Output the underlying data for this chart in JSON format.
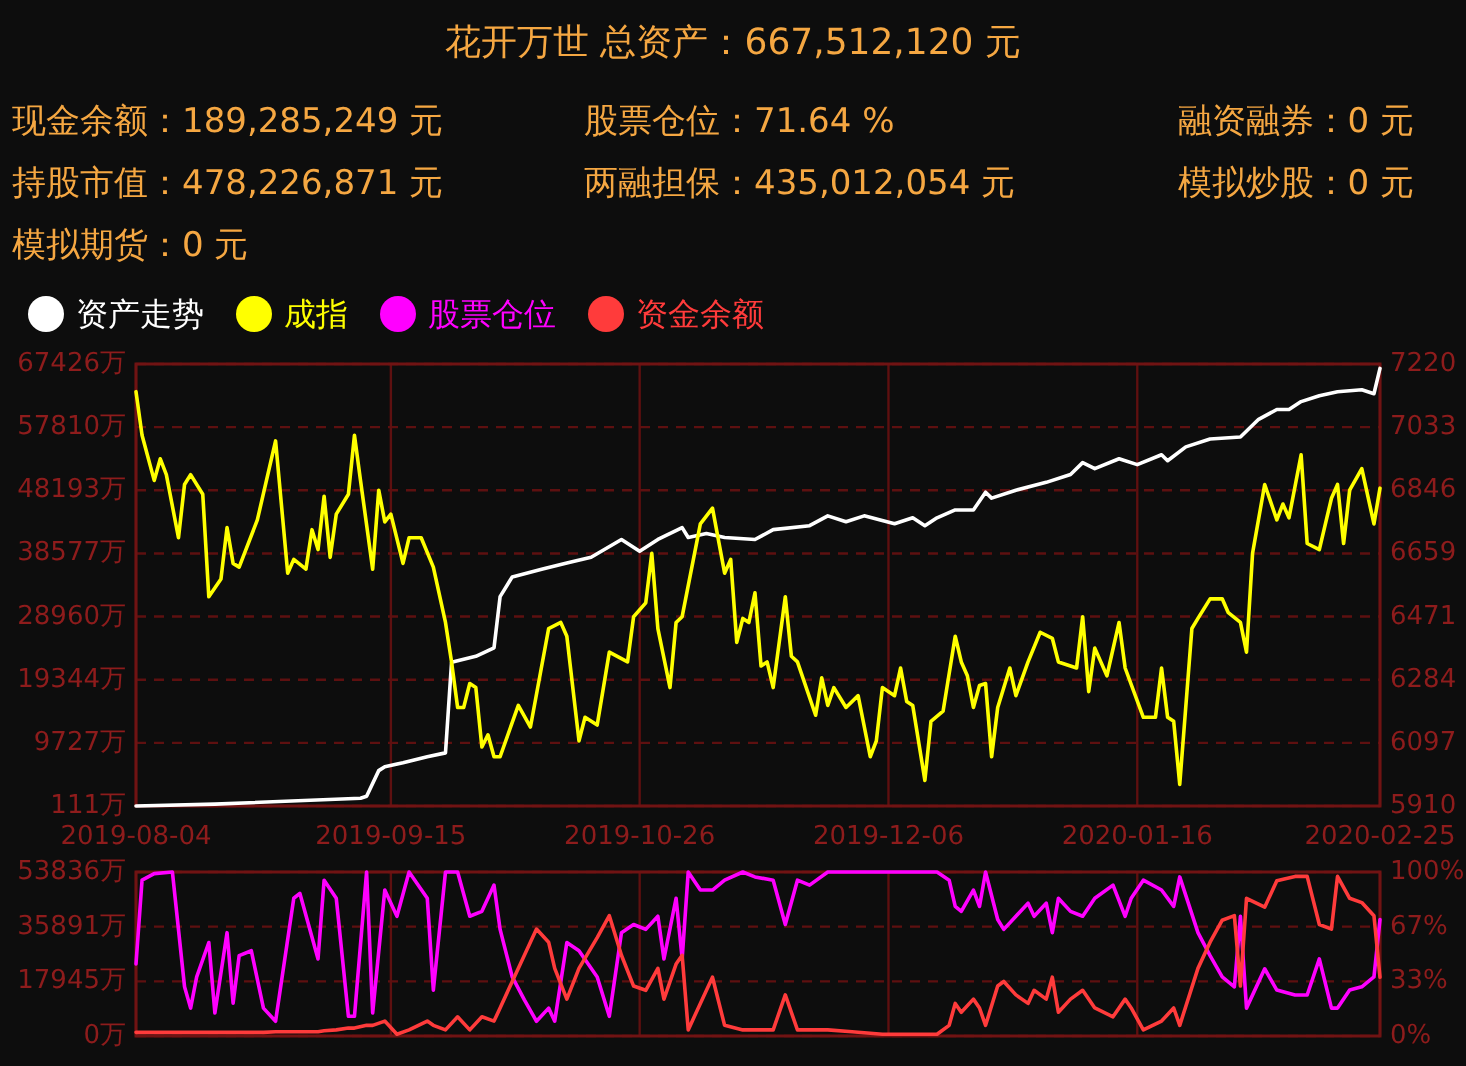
{
  "chart_data": [
    {
      "type": "other",
      "title": "花开万世 总资产：667,512,120 元",
      "annotations": [
        "现金余额：189,285,249 元",
        "股票仓位：71.64 %",
        "融资融券：0 元",
        "持股市值：478,226,871 元",
        "两融担保：435,012,054 元",
        "模拟炒股：0 元",
        "模拟期货：0 元"
      ]
    },
    {
      "type": "line",
      "xlim": [
        "2019-08-04",
        "2020-02-25"
      ],
      "xticks": [
        "2019-08-04",
        "2019-09-15",
        "2019-10-26",
        "2019-12-06",
        "2020-01-16",
        "2020-02-25"
      ],
      "ylim": [
        111,
        67426
      ],
      "yticks": [
        {
          "value": 111,
          "label": "111万"
        },
        {
          "value": 9727,
          "label": "9727万"
        },
        {
          "value": 19344,
          "label": "19344万"
        },
        {
          "value": 28960,
          "label": "28960万"
        },
        {
          "value": 38577,
          "label": "38577万"
        },
        {
          "value": 48193,
          "label": "48193万"
        },
        {
          "value": 57810,
          "label": "57810万"
        },
        {
          "value": 67426,
          "label": "67426万"
        }
      ],
      "y2lim": [
        5910,
        7220
      ],
      "y2ticks": [
        5910,
        6097,
        6284,
        6471,
        6659,
        6846,
        7033,
        7220
      ],
      "grid": true,
      "legend": "top left",
      "marker": "none",
      "line_style": "solid",
      "series": [
        {
          "name": "资产走势",
          "color": "#ffffff",
          "x": [
            "2019-08-04",
            "2019-08-17",
            "2019-09-10",
            "2019-09-11",
            "2019-09-13",
            "2019-09-14",
            "2019-09-17",
            "2019-09-21",
            "2019-09-24",
            "2019-09-25",
            "2019-09-29",
            "2019-10-02",
            "2019-10-03",
            "2019-10-05",
            "2019-10-10",
            "2019-10-14",
            "2019-10-18",
            "2019-10-23",
            "2019-10-26",
            "2019-10-29",
            "2019-11-02",
            "2019-11-03",
            "2019-11-06",
            "2019-11-09",
            "2019-11-14",
            "2019-11-17",
            "2019-11-23",
            "2019-11-26",
            "2019-11-29",
            "2019-12-02",
            "2019-12-07",
            "2019-12-10",
            "2019-12-12",
            "2019-12-14",
            "2019-12-17",
            "2019-12-20",
            "2019-12-22",
            "2019-12-23",
            "2019-12-27",
            "2020-01-01",
            "2020-01-05",
            "2020-01-07",
            "2020-01-09",
            "2020-01-13",
            "2020-01-16",
            "2020-01-20",
            "2020-01-21",
            "2020-01-24",
            "2020-01-28",
            "2020-02-02",
            "2020-02-05",
            "2020-02-08",
            "2020-02-10",
            "2020-02-12",
            "2020-02-15",
            "2020-02-18",
            "2020-02-22",
            "2020-02-24",
            "2020-02-25"
          ],
          "values": [
            111,
            400,
            1300,
            1600,
            5500,
            6100,
            6700,
            7600,
            8200,
            22000,
            22900,
            24200,
            32000,
            35000,
            36200,
            37100,
            38000,
            40700,
            38900,
            40700,
            42500,
            41000,
            41600,
            41000,
            40700,
            42200,
            42800,
            44300,
            43400,
            44300,
            43100,
            44000,
            42800,
            44000,
            45200,
            45200,
            47900,
            47000,
            48200,
            49400,
            50600,
            52400,
            51500,
            53000,
            52100,
            53600,
            52700,
            54800,
            56000,
            56300,
            59000,
            60500,
            60500,
            61700,
            62600,
            63200,
            63500,
            62900,
            66751
          ]
        },
        {
          "name": "成指",
          "color": "#ffff00",
          "axis": "y2",
          "x": [
            "2019-08-04",
            "2019-08-05",
            "2019-08-07",
            "2019-08-08",
            "2019-08-09",
            "2019-08-11",
            "2019-08-12",
            "2019-08-13",
            "2019-08-15",
            "2019-08-16",
            "2019-08-18",
            "2019-08-19",
            "2019-08-20",
            "2019-08-21",
            "2019-08-24",
            "2019-08-27",
            "2019-08-29",
            "2019-08-30",
            "2019-09-01",
            "2019-09-02",
            "2019-09-03",
            "2019-09-04",
            "2019-09-05",
            "2019-09-06",
            "2019-09-08",
            "2019-09-09",
            "2019-09-10",
            "2019-09-12",
            "2019-09-13",
            "2019-09-14",
            "2019-09-15",
            "2019-09-17",
            "2019-09-18",
            "2019-09-20",
            "2019-09-22",
            "2019-09-24",
            "2019-09-25",
            "2019-09-26",
            "2019-09-27",
            "2019-09-28",
            "2019-09-29",
            "2019-09-30",
            "2019-10-01",
            "2019-10-02",
            "2019-10-03",
            "2019-10-06",
            "2019-10-08",
            "2019-10-11",
            "2019-10-13",
            "2019-10-14",
            "2019-10-16",
            "2019-10-17",
            "2019-10-19",
            "2019-10-21",
            "2019-10-24",
            "2019-10-25",
            "2019-10-27",
            "2019-10-28",
            "2019-10-29",
            "2019-10-31",
            "2019-11-01",
            "2019-11-02",
            "2019-11-05",
            "2019-11-07",
            "2019-11-09",
            "2019-11-10",
            "2019-11-11",
            "2019-11-12",
            "2019-11-13",
            "2019-11-14",
            "2019-11-15",
            "2019-11-16",
            "2019-11-17",
            "2019-11-19",
            "2019-11-20",
            "2019-11-21",
            "2019-11-24",
            "2019-11-25",
            "2019-11-26",
            "2019-11-27",
            "2019-11-29",
            "2019-12-01",
            "2019-12-03",
            "2019-12-04",
            "2019-12-05",
            "2019-12-07",
            "2019-12-08",
            "2019-12-09",
            "2019-12-10",
            "2019-12-12",
            "2019-12-13",
            "2019-12-15",
            "2019-12-17",
            "2019-12-18",
            "2019-12-19",
            "2019-12-20",
            "2019-12-21",
            "2019-12-22",
            "2019-12-23",
            "2019-12-24",
            "2019-12-26",
            "2019-12-27",
            "2019-12-29",
            "2019-12-31",
            "2020-01-02",
            "2020-01-03",
            "2020-01-06",
            "2020-01-07",
            "2020-01-08",
            "2020-01-09",
            "2020-01-11",
            "2020-01-13",
            "2020-01-14",
            "2020-01-17",
            "2020-01-19",
            "2020-01-20",
            "2020-01-21",
            "2020-01-22",
            "2020-01-23",
            "2020-01-25",
            "2020-01-26",
            "2020-01-28",
            "2020-01-30",
            "2020-01-31",
            "2020-02-02",
            "2020-02-03",
            "2020-02-04",
            "2020-02-06",
            "2020-02-08",
            "2020-02-09",
            "2020-02-10",
            "2020-02-12",
            "2020-02-13",
            "2020-02-15",
            "2020-02-17",
            "2020-02-18",
            "2020-02-19",
            "2020-02-20",
            "2020-02-22",
            "2020-02-24",
            "2020-02-25"
          ],
          "values": [
            7138,
            7009,
            6875,
            6939,
            6892,
            6705,
            6863,
            6892,
            6834,
            6530,
            6583,
            6735,
            6629,
            6618,
            6758,
            6992,
            6600,
            6641,
            6612,
            6729,
            6670,
            6828,
            6647,
            6775,
            6834,
            7009,
            6875,
            6612,
            6846,
            6752,
            6775,
            6629,
            6705,
            6705,
            6618,
            6454,
            6337,
            6202,
            6202,
            6273,
            6261,
            6085,
            6121,
            6056,
            6056,
            6208,
            6144,
            6436,
            6454,
            6413,
            6103,
            6173,
            6150,
            6366,
            6337,
            6471,
            6512,
            6659,
            6436,
            6261,
            6454,
            6471,
            6746,
            6793,
            6600,
            6641,
            6395,
            6466,
            6454,
            6542,
            6325,
            6337,
            6261,
            6530,
            6354,
            6337,
            6179,
            6290,
            6208,
            6261,
            6202,
            6237,
            6056,
            6103,
            6261,
            6237,
            6319,
            6220,
            6208,
            5986,
            6161,
            6191,
            6413,
            6337,
            6296,
            6202,
            6267,
            6273,
            6056,
            6202,
            6319,
            6237,
            6337,
            6425,
            6407,
            6337,
            6319,
            6471,
            6249,
            6378,
            6296,
            6454,
            6319,
            6173,
            6173,
            6319,
            6173,
            6161,
            5974,
            6436,
            6466,
            6524,
            6524,
            6483,
            6454,
            6366,
            6659,
            6863,
            6758,
            6805,
            6764,
            6951,
            6688,
            6670,
            6822,
            6863,
            6688,
            6846,
            6910,
            6746,
            6852
          ]
        }
      ]
    },
    {
      "type": "line",
      "tick_labels": "y",
      "xlim": [
        "2019-08-04",
        "2020-02-25"
      ],
      "xticks": [
        {
          "value": "2019-08-04",
          "label": null
        },
        {
          "value": "2019-09-15",
          "label": null
        },
        {
          "value": "2019-10-26",
          "label": null
        },
        {
          "value": "2019-12-06",
          "label": null
        },
        {
          "value": "2020-01-16",
          "label": null
        },
        {
          "value": "2020-02-25",
          "label": null
        }
      ],
      "ylim": [
        0,
        53836
      ],
      "yticks": [
        {
          "value": 0,
          "label": "0万"
        },
        {
          "value": 17945,
          "label": "17945万"
        },
        {
          "value": 35891,
          "label": "35891万"
        },
        {
          "value": 53836,
          "label": "53836万"
        }
      ],
      "y2lim": [
        0,
        100
      ],
      "y2ticks": [
        {
          "value": 0,
          "label": "0%"
        },
        {
          "value": 33.3,
          "label": "33%"
        },
        {
          "value": 66.7,
          "label": "67%"
        },
        {
          "value": 100,
          "label": "100%"
        }
      ],
      "grid": true,
      "legend": "top left",
      "marker": "none",
      "line_style": "solid",
      "x": [
        "2019-08-04",
        "2019-08-05",
        "2019-08-07",
        "2019-08-10",
        "2019-08-12",
        "2019-08-13",
        "2019-08-14",
        "2019-08-16",
        "2019-08-17",
        "2019-08-19",
        "2019-08-20",
        "2019-08-21",
        "2019-08-23",
        "2019-08-25",
        "2019-08-27",
        "2019-08-30",
        "2019-08-31",
        "2019-09-03",
        "2019-09-04",
        "2019-09-06",
        "2019-09-08",
        "2019-09-09",
        "2019-09-11",
        "2019-09-12",
        "2019-09-14",
        "2019-09-16",
        "2019-09-18",
        "2019-09-21",
        "2019-09-22",
        "2019-09-24",
        "2019-09-26",
        "2019-09-28",
        "2019-09-30",
        "2019-10-02",
        "2019-10-03",
        "2019-10-05",
        "2019-10-07",
        "2019-10-09",
        "2019-10-11",
        "2019-10-12",
        "2019-10-14",
        "2019-10-16",
        "2019-10-19",
        "2019-10-21",
        "2019-10-23",
        "2019-10-25",
        "2019-10-27",
        "2019-10-29",
        "2019-10-30",
        "2019-11-01",
        "2019-11-02",
        "2019-11-03",
        "2019-11-05",
        "2019-11-07",
        "2019-11-09",
        "2019-11-12",
        "2019-11-14",
        "2019-11-17",
        "2019-11-19",
        "2019-11-21",
        "2019-11-23",
        "2019-11-26",
        "2019-11-30",
        "2019-12-05",
        "2019-12-09",
        "2019-12-14",
        "2019-12-16",
        "2019-12-17",
        "2019-12-18",
        "2019-12-20",
        "2019-12-21",
        "2019-12-22",
        "2019-12-24",
        "2019-12-25",
        "2019-12-27",
        "2019-12-29",
        "2019-12-30",
        "2020-01-01",
        "2020-01-02",
        "2020-01-03",
        "2020-01-05",
        "2020-01-07",
        "2020-01-09",
        "2020-01-12",
        "2020-01-14",
        "2020-01-15",
        "2020-01-17",
        "2020-01-20",
        "2020-01-22",
        "2020-01-23",
        "2020-01-26",
        "2020-01-28",
        "2020-01-30",
        "2020-02-01",
        "2020-02-02",
        "2020-02-03",
        "2020-02-06",
        "2020-02-08",
        "2020-02-11",
        "2020-02-13",
        "2020-02-15",
        "2020-02-17",
        "2020-02-18",
        "2020-02-20",
        "2020-02-22",
        "2020-02-24",
        "2020-02-25"
      ],
      "series": [
        {
          "name": "股票仓位",
          "color": "#ff00ff",
          "axis": "y2",
          "values": [
            44,
            95,
            99,
            100,
            30,
            17,
            36,
            57,
            14,
            63,
            20,
            49,
            52,
            17,
            9,
            84,
            87,
            47,
            95,
            84,
            12,
            12,
            100,
            14,
            89,
            73,
            100,
            84,
            28,
            100,
            100,
            73,
            76,
            92,
            65,
            36,
            22,
            9,
            17,
            9,
            57,
            52,
            36,
            12,
            63,
            68,
            65,
            73,
            47,
            84,
            47,
            100,
            89,
            89,
            95,
            100,
            97,
            95,
            68,
            95,
            92,
            100,
            100,
            100,
            100,
            100,
            95,
            79,
            76,
            89,
            79,
            100,
            71,
            65,
            73,
            81,
            73,
            81,
            63,
            84,
            76,
            73,
            84,
            92,
            73,
            84,
            95,
            89,
            79,
            97,
            63,
            49,
            36,
            30,
            73,
            17,
            41,
            28,
            25,
            25,
            47,
            17,
            17,
            28,
            30,
            36,
            71
          ]
        },
        {
          "name": "资金余额",
          "color": "#ff3b3b",
          "values": [
            1200,
            1200,
            1200,
            1200,
            1200,
            1200,
            1200,
            1200,
            1200,
            1200,
            1200,
            1200,
            1200,
            1200,
            1400,
            1400,
            1400,
            1400,
            1700,
            2000,
            2600,
            2600,
            3500,
            3500,
            4900,
            600,
            2000,
            4900,
            3500,
            2000,
            6300,
            2000,
            6300,
            4900,
            9200,
            17900,
            26500,
            35100,
            30800,
            22200,
            12100,
            22200,
            32300,
            39500,
            26500,
            16400,
            15000,
            22200,
            12100,
            23600,
            26500,
            2000,
            10700,
            19300,
            3500,
            2000,
            2000,
            2000,
            13500,
            2000,
            2000,
            2000,
            1400,
            600,
            600,
            600,
            3500,
            10700,
            7800,
            12100,
            9200,
            3500,
            16400,
            17900,
            13500,
            10700,
            15000,
            12100,
            19300,
            7800,
            12100,
            15000,
            9200,
            6300,
            12100,
            9200,
            2000,
            4900,
            9200,
            3500,
            22200,
            30800,
            38000,
            39500,
            16400,
            45200,
            42300,
            51000,
            52400,
            52400,
            36600,
            35100,
            52400,
            45200,
            43800,
            39500,
            19300
          ]
        }
      ]
    }
  ]
}
